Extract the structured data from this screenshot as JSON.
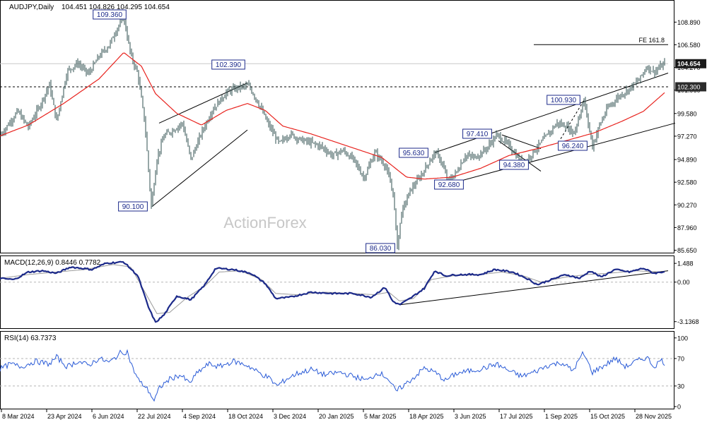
{
  "header": {
    "symbol_tf": "AUDJPY,Daily",
    "ohlc": "104.451 104.826 104.295 104.654"
  },
  "watermark": "ActionForex",
  "colors": {
    "price": "#2f4f4f",
    "ma": "#e8231e",
    "macd": "#1c2a8a",
    "signal": "#9a9a9a",
    "rsi": "#2a5bd7",
    "last_price_bg": "#1a1a1a"
  },
  "chart_data": [
    {
      "type": "candlestick",
      "panel": "price",
      "title": "AUDJPY,Daily",
      "ylim": [
        85.4,
        111.0
      ],
      "y_ticks": [
        "108.890",
        "106.580",
        "104.270",
        "101.960",
        "99.580",
        "97.270",
        "94.890",
        "92.580",
        "90.270",
        "87.960",
        "85.650"
      ],
      "last_price": "104.654",
      "level_label": "102.300",
      "fe_label": "FE 161.8",
      "pivot_labels": [
        "109.360",
        "90.100",
        "102.390",
        "86.030",
        "95.630",
        "92.680",
        "97.410",
        "94.380",
        "100.930",
        "96.240"
      ],
      "price_anchors": [
        [
          0,
          97.3
        ],
        [
          25,
          99.8
        ],
        [
          40,
          98.2
        ],
        [
          55,
          100.2
        ],
        [
          70,
          102.5
        ],
        [
          80,
          98.8
        ],
        [
          95,
          103.9
        ],
        [
          110,
          104.7
        ],
        [
          125,
          103.6
        ],
        [
          140,
          105.4
        ],
        [
          155,
          106.6
        ],
        [
          165,
          108.2
        ],
        [
          175,
          109.36
        ],
        [
          185,
          105.5
        ],
        [
          195,
          103.6
        ],
        [
          205,
          98.5
        ],
        [
          214,
          90.1
        ],
        [
          222,
          95.0
        ],
        [
          232,
          97.3
        ],
        [
          245,
          97.9
        ],
        [
          258,
          98.6
        ],
        [
          270,
          94.9
        ],
        [
          285,
          97.6
        ],
        [
          300,
          99.9
        ],
        [
          320,
          101.7
        ],
        [
          335,
          102.2
        ],
        [
          352,
          102.39
        ],
        [
          365,
          100.7
        ],
        [
          380,
          98.4
        ],
        [
          395,
          96.5
        ],
        [
          410,
          97.5
        ],
        [
          425,
          96.9
        ],
        [
          440,
          96.6
        ],
        [
          455,
          96.2
        ],
        [
          470,
          95.3
        ],
        [
          485,
          95.8
        ],
        [
          500,
          94.9
        ],
        [
          515,
          93.0
        ],
        [
          530,
          95.6
        ],
        [
          545,
          94.3
        ],
        [
          556,
          91.5
        ],
        [
          562,
          86.03
        ],
        [
          568,
          89.5
        ],
        [
          580,
          91.7
        ],
        [
          595,
          93.2
        ],
        [
          608,
          94.8
        ],
        [
          616,
          95.63
        ],
        [
          625,
          94.6
        ],
        [
          633,
          92.68
        ],
        [
          645,
          93.5
        ],
        [
          658,
          95.3
        ],
        [
          672,
          95.1
        ],
        [
          688,
          96.0
        ],
        [
          703,
          97.41
        ],
        [
          720,
          96.3
        ],
        [
          740,
          94.38
        ],
        [
          757,
          95.9
        ],
        [
          772,
          97.2
        ],
        [
          788,
          98.6
        ],
        [
          800,
          98.3
        ],
        [
          812,
          97.6
        ],
        [
          826,
          100.93
        ],
        [
          838,
          96.24
        ],
        [
          848,
          98.4
        ],
        [
          860,
          100.2
        ],
        [
          875,
          101.3
        ],
        [
          890,
          102.1
        ],
        [
          905,
          103.1
        ],
        [
          915,
          104.4
        ],
        [
          925,
          103.8
        ],
        [
          940,
          104.65
        ]
      ],
      "ma_anchors": [
        [
          0,
          97.3
        ],
        [
          40,
          98.4
        ],
        [
          90,
          100.6
        ],
        [
          140,
          103.1
        ],
        [
          175,
          105.8
        ],
        [
          200,
          104.4
        ],
        [
          220,
          101.6
        ],
        [
          250,
          99.6
        ],
        [
          285,
          98.4
        ],
        [
          320,
          99.9
        ],
        [
          350,
          100.6
        ],
        [
          375,
          99.9
        ],
        [
          400,
          98.3
        ],
        [
          440,
          97.5
        ],
        [
          490,
          96.3
        ],
        [
          540,
          95.1
        ],
        [
          575,
          93.1
        ],
        [
          600,
          92.9
        ],
        [
          640,
          93.1
        ],
        [
          680,
          94.0
        ],
        [
          720,
          95.3
        ],
        [
          760,
          96.0
        ],
        [
          800,
          96.8
        ],
        [
          840,
          97.6
        ],
        [
          880,
          98.8
        ],
        [
          910,
          99.8
        ],
        [
          940,
          101.7
        ]
      ],
      "annotation_lines": [
        {
          "name": "fe-line",
          "points": [
            [
              755,
              106.6
            ],
            [
              945,
              106.6
            ]
          ],
          "style": "solid"
        },
        {
          "name": "level-line",
          "points": [
            [
              0,
              102.3
            ],
            [
              945,
              102.3
            ]
          ],
          "style": "dashed"
        },
        {
          "name": "last-price-line",
          "points": [
            [
              0,
              104.65
            ],
            [
              945,
              104.65
            ]
          ],
          "style": "grey"
        },
        {
          "name": "wedge-2024-upper",
          "points": [
            [
              225,
              98.6
            ],
            [
              350,
              102.7
            ]
          ],
          "style": "solid"
        },
        {
          "name": "wedge-2024-lower",
          "points": [
            [
              215,
              90.1
            ],
            [
              350,
              97.9
            ]
          ],
          "style": "solid"
        },
        {
          "name": "channel-2025-upper",
          "points": [
            [
              615,
              95.6
            ],
            [
              945,
              103.7
            ]
          ],
          "style": "solid"
        },
        {
          "name": "channel-2025-lower",
          "points": [
            [
              630,
              92.3
            ],
            [
              955,
              98.6
            ]
          ],
          "style": "solid"
        },
        {
          "name": "flag-upper",
          "points": [
            [
              710,
              97.4
            ],
            [
              765,
              96.0
            ]
          ],
          "style": "solid"
        },
        {
          "name": "flag-lower",
          "points": [
            [
              705,
              96.8
            ],
            [
              765,
              93.7
            ]
          ],
          "style": "solid"
        },
        {
          "name": "dashed-spike",
          "points": [
            [
              793,
              97.0
            ],
            [
              826,
              100.93
            ]
          ],
          "style": "dashed"
        }
      ]
    },
    {
      "type": "line",
      "panel": "macd",
      "title": "MACD(12,26,9) 0.8446 0.7782",
      "ylim": [
        -3.6,
        2.0
      ],
      "y_ticks": [
        "1.488",
        "0.00",
        "-3.1368"
      ],
      "series": [
        {
          "name": "MACD",
          "anchors": [
            [
              0,
              0.3
            ],
            [
              20,
              0.2
            ],
            [
              40,
              0.8
            ],
            [
              60,
              0.9
            ],
            [
              80,
              0.7
            ],
            [
              100,
              1.2
            ],
            [
              130,
              1.0
            ],
            [
              150,
              1.5
            ],
            [
              175,
              1.6
            ],
            [
              195,
              0.5
            ],
            [
              210,
              -2.0
            ],
            [
              220,
              -3.2
            ],
            [
              232,
              -2.6
            ],
            [
              250,
              -1.1
            ],
            [
              270,
              -1.4
            ],
            [
              290,
              -0.2
            ],
            [
              305,
              1.1
            ],
            [
              330,
              1.0
            ],
            [
              355,
              0.7
            ],
            [
              375,
              -0.1
            ],
            [
              390,
              -1.3
            ],
            [
              410,
              -1.2
            ],
            [
              440,
              -0.8
            ],
            [
              470,
              -0.9
            ],
            [
              500,
              -0.9
            ],
            [
              525,
              -1.2
            ],
            [
              545,
              -0.4
            ],
            [
              555,
              -1.5
            ],
            [
              565,
              -1.8
            ],
            [
              580,
              -1.3
            ],
            [
              600,
              -0.5
            ],
            [
              615,
              0.9
            ],
            [
              630,
              0.5
            ],
            [
              650,
              0.6
            ],
            [
              680,
              0.6
            ],
            [
              700,
              1.0
            ],
            [
              725,
              0.8
            ],
            [
              745,
              0.3
            ],
            [
              760,
              -0.2
            ],
            [
              780,
              0.2
            ],
            [
              800,
              0.6
            ],
            [
              820,
              0.3
            ],
            [
              835,
              0.9
            ],
            [
              850,
              0.4
            ],
            [
              870,
              1.0
            ],
            [
              890,
              0.8
            ],
            [
              910,
              1.1
            ],
            [
              925,
              0.7
            ],
            [
              940,
              0.84
            ]
          ]
        },
        {
          "name": "Signal",
          "anchors": [
            [
              0,
              0.3
            ],
            [
              40,
              0.6
            ],
            [
              80,
              0.8
            ],
            [
              120,
              1.0
            ],
            [
              160,
              1.4
            ],
            [
              185,
              1.2
            ],
            [
              205,
              -0.8
            ],
            [
              222,
              -2.5
            ],
            [
              240,
              -2.4
            ],
            [
              265,
              -1.2
            ],
            [
              290,
              -0.3
            ],
            [
              310,
              0.8
            ],
            [
              340,
              0.9
            ],
            [
              370,
              0.2
            ],
            [
              390,
              -0.9
            ],
            [
              420,
              -1.0
            ],
            [
              460,
              -0.8
            ],
            [
              500,
              -0.9
            ],
            [
              530,
              -1.0
            ],
            [
              550,
              -0.8
            ],
            [
              565,
              -1.5
            ],
            [
              585,
              -1.3
            ],
            [
              610,
              0.2
            ],
            [
              640,
              0.5
            ],
            [
              680,
              0.6
            ],
            [
              710,
              0.8
            ],
            [
              740,
              0.5
            ],
            [
              765,
              0.0
            ],
            [
              800,
              0.4
            ],
            [
              830,
              0.6
            ],
            [
              860,
              0.7
            ],
            [
              900,
              0.9
            ],
            [
              940,
              0.78
            ]
          ]
        }
      ],
      "trendline": [
        [
          565,
          -1.8
        ],
        [
          945,
          0.9
        ]
      ]
    },
    {
      "type": "line",
      "panel": "rsi",
      "title": "RSI(14) 63.7373",
      "ylim": [
        -2,
        108
      ],
      "y_ticks": [
        "100",
        "70",
        "30",
        "0"
      ],
      "levels": [
        70,
        30
      ],
      "series": [
        {
          "name": "RSI",
          "anchors": [
            [
              0,
              55
            ],
            [
              15,
              62
            ],
            [
              30,
              58
            ],
            [
              50,
              66
            ],
            [
              70,
              62
            ],
            [
              80,
              72
            ],
            [
              95,
              58
            ],
            [
              110,
              66
            ],
            [
              125,
              60
            ],
            [
              140,
              70
            ],
            [
              155,
              64
            ],
            [
              170,
              78
            ],
            [
              180,
              80
            ],
            [
              188,
              55
            ],
            [
              198,
              35
            ],
            [
              205,
              30
            ],
            [
              212,
              20
            ],
            [
              218,
              8
            ],
            [
              226,
              28
            ],
            [
              240,
              40
            ],
            [
              255,
              46
            ],
            [
              268,
              34
            ],
            [
              280,
              50
            ],
            [
              295,
              62
            ],
            [
              310,
              58
            ],
            [
              330,
              66
            ],
            [
              350,
              60
            ],
            [
              365,
              50
            ],
            [
              380,
              42
            ],
            [
              392,
              30
            ],
            [
              405,
              40
            ],
            [
              420,
              48
            ],
            [
              440,
              54
            ],
            [
              460,
              46
            ],
            [
              480,
              50
            ],
            [
              500,
              44
            ],
            [
              520,
              38
            ],
            [
              535,
              50
            ],
            [
              548,
              42
            ],
            [
              560,
              22
            ],
            [
              570,
              30
            ],
            [
              585,
              42
            ],
            [
              600,
              56
            ],
            [
              615,
              50
            ],
            [
              630,
              38
            ],
            [
              645,
              48
            ],
            [
              665,
              52
            ],
            [
              685,
              56
            ],
            [
              702,
              62
            ],
            [
              720,
              52
            ],
            [
              738,
              44
            ],
            [
              755,
              50
            ],
            [
              775,
              60
            ],
            [
              795,
              64
            ],
            [
              810,
              52
            ],
            [
              825,
              78
            ],
            [
              838,
              50
            ],
            [
              855,
              60
            ],
            [
              870,
              70
            ],
            [
              885,
              58
            ],
            [
              900,
              66
            ],
            [
              915,
              72
            ],
            [
              925,
              58
            ],
            [
              935,
              68
            ],
            [
              940,
              63.7
            ]
          ]
        }
      ]
    }
  ],
  "x_axis": {
    "labels": [
      "8 Mar 2024",
      "23 Apr 2024",
      "6 Jun 2024",
      "22 Jul 2024",
      "4 Sep 2024",
      "18 Oct 2024",
      "3 Dec 2024",
      "20 Jan 2025",
      "5 Mar 2025",
      "18 Apr 2025",
      "3 Jun 2025",
      "17 Jul 2025",
      "1 Sep 2025",
      "15 Oct 2025",
      "28 Nov 2025"
    ]
  }
}
